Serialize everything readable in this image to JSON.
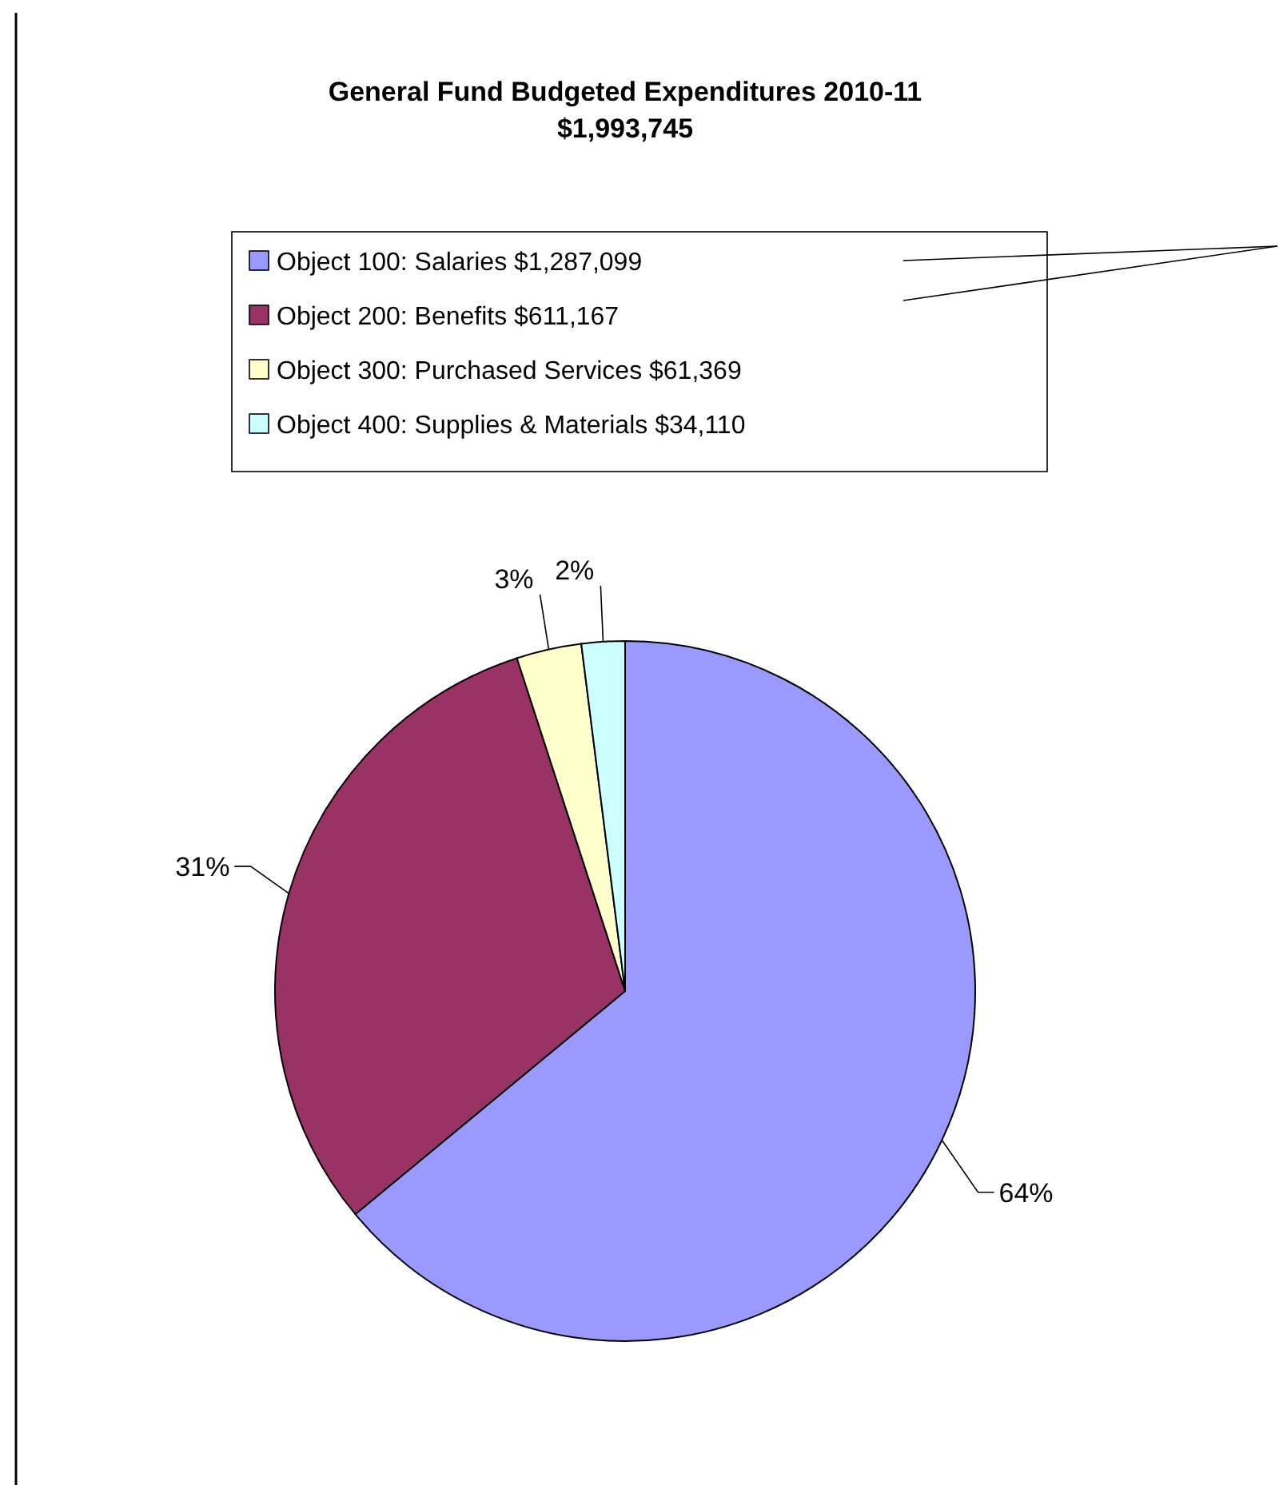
{
  "chart_data": {
    "type": "pie",
    "title": "General Fund Budgeted Expenditures 2010-11",
    "subtitle": "$1,993,745",
    "categories": [
      "Object 100: Salaries $1,287,099",
      "Object 200: Benefits $611,167",
      "Object 300: Purchased Services $61,369",
      "Object 400: Supplies & Materials $34,110"
    ],
    "values": [
      64,
      31,
      3,
      2
    ],
    "value_labels": [
      "64%",
      "31%",
      "3%",
      "2%"
    ],
    "colors": [
      "#9999ff",
      "#993366",
      "#ffffcc",
      "#ccffff"
    ],
    "legend": "top"
  }
}
